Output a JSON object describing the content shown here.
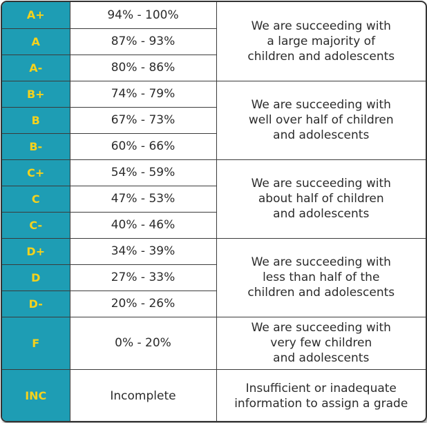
{
  "table": {
    "rows": [
      {
        "grade": "A+",
        "range": "94% - 100%"
      },
      {
        "grade": "A",
        "range": "87% - 93%"
      },
      {
        "grade": "A-",
        "range": "80% - 86%"
      },
      {
        "grade": "B+",
        "range": "74% - 79%"
      },
      {
        "grade": "B",
        "range": "67% - 73%"
      },
      {
        "grade": "B-",
        "range": "60% - 66%"
      },
      {
        "grade": "C+",
        "range": "54% - 59%"
      },
      {
        "grade": "C",
        "range": "47% - 53%"
      },
      {
        "grade": "C-",
        "range": "40% - 46%"
      },
      {
        "grade": "D+",
        "range": "34% - 39%"
      },
      {
        "grade": "D",
        "range": "27% - 33%"
      },
      {
        "grade": "D-",
        "range": "20% - 26%"
      },
      {
        "grade": "F",
        "range": "0% - 20%"
      },
      {
        "grade": "INC",
        "range": "Incomplete"
      }
    ],
    "descriptions": [
      {
        "lines": [
          "We are succeeding with",
          "a large majority of",
          "children and adolescents"
        ]
      },
      {
        "lines": [
          "We are succeeding with",
          "well over half of children",
          "and adolescents"
        ]
      },
      {
        "lines": [
          "We are succeeding with",
          "about half of children",
          "and adolescents"
        ]
      },
      {
        "lines": [
          "We are succeeding with",
          "less than half of the",
          "children and adolescents"
        ]
      },
      {
        "lines": [
          "We are succeeding with",
          "very few children",
          "and adolescents"
        ]
      },
      {
        "lines": [
          "Insufficient or inadequate",
          "information to assign a grade"
        ]
      }
    ]
  },
  "colors": {
    "grade_cell_bg": "#1e9db4",
    "grade_text": "#f6d21c",
    "body_text": "#2b2b2b",
    "border": "#333333"
  }
}
